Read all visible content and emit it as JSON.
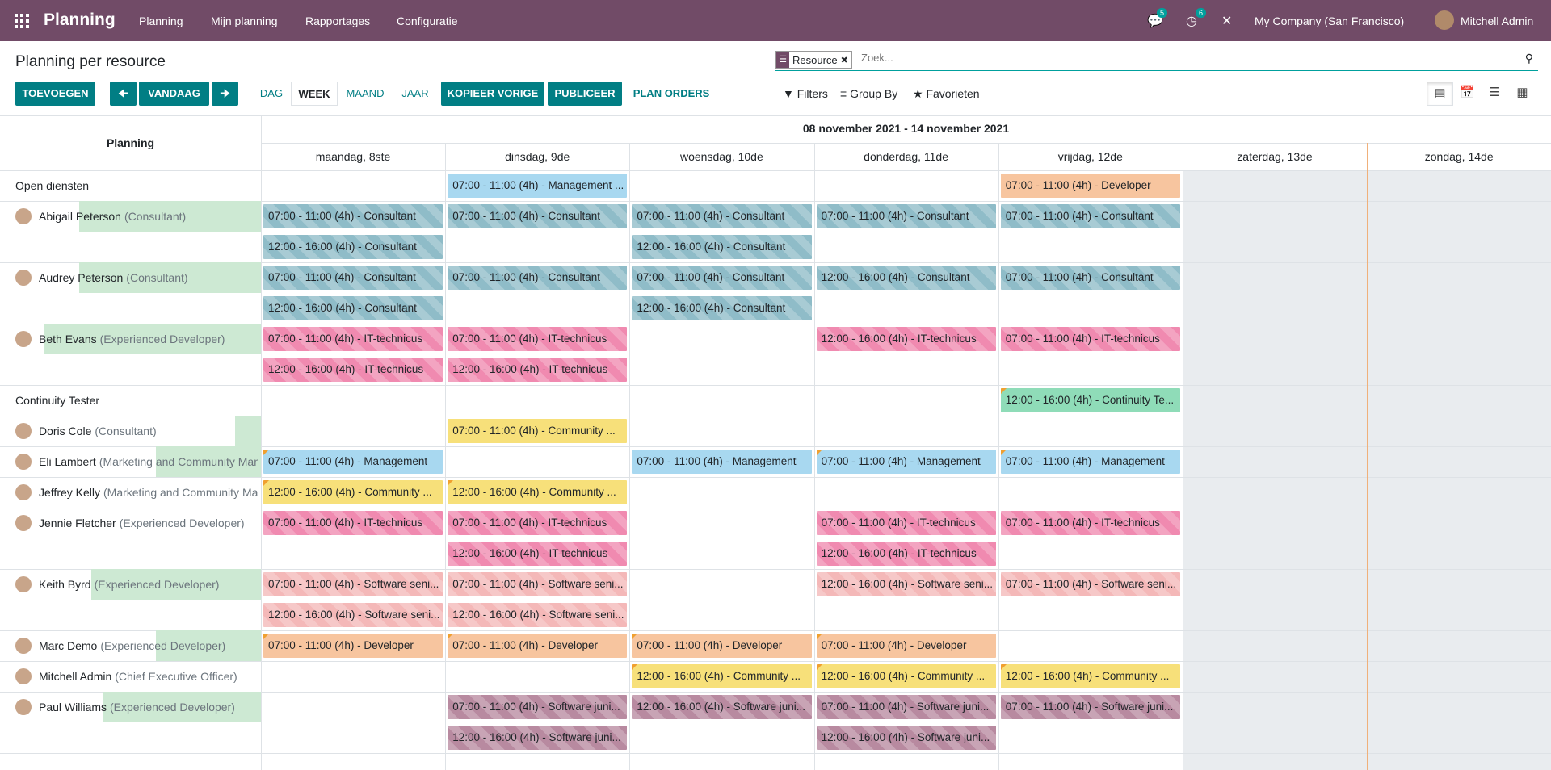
{
  "topbar": {
    "app_name": "Planning",
    "menu": [
      "Planning",
      "Mijn planning",
      "Rapportages",
      "Configuratie"
    ],
    "messages_count": "5",
    "activities_count": "6",
    "company": "My Company (San Francisco)",
    "user": "Mitchell Admin"
  },
  "page_title": "Planning per resource",
  "search": {
    "facet_label": "Resource",
    "placeholder": "Zoek..."
  },
  "toolbar": {
    "add": "TOEVOEGEN",
    "prev_icon": "arrow-left-icon",
    "today": "VANDAAG",
    "next_icon": "arrow-right-icon",
    "scales": [
      "DAG",
      "WEEK",
      "MAAND",
      "JAAR"
    ],
    "active_scale": "WEEK",
    "copy_previous": "KOPIEER VORIGE",
    "publish": "PUBLICEER",
    "plan_orders": "PLAN ORDERS",
    "filters": "Filters",
    "group_by": "Group By",
    "favorites": "Favorieten"
  },
  "gantt": {
    "header_title": "Planning",
    "range": "08 november 2021 - 14 november 2021",
    "days": [
      "maandag, 8ste",
      "dinsdag, 9de",
      "woensdag, 10de",
      "donderdag, 11de",
      "vrijdag, 12de",
      "zaterdag, 13de",
      "zondag, 14de"
    ],
    "rows": [
      {
        "name": "Open diensten",
        "role": "",
        "avatar": false,
        "lines": 1,
        "hl": 0,
        "pills": [
          {
            "day": 1,
            "line": 0,
            "text": "07:00 - 11:00 (4h) - Management ...",
            "color": "#a8d8f0",
            "striped": false,
            "corner": false
          },
          {
            "day": 4,
            "line": 0,
            "text": "07:00 - 11:00 (4h) - Developer",
            "color": "#f7c59f",
            "striped": false,
            "corner": false
          }
        ]
      },
      {
        "name": "Abigail Peterson",
        "role": "(Consultant)",
        "avatar": true,
        "lines": 2,
        "hl": 225,
        "pills": [
          {
            "day": 0,
            "line": 0,
            "text": "07:00 - 11:00 (4h) - Consultant",
            "color": "#8fbcc8",
            "striped": true,
            "corner": false
          },
          {
            "day": 1,
            "line": 0,
            "text": "07:00 - 11:00 (4h) - Consultant",
            "color": "#8fbcc8",
            "striped": true,
            "corner": false
          },
          {
            "day": 2,
            "line": 0,
            "text": "07:00 - 11:00 (4h) - Consultant",
            "color": "#8fbcc8",
            "striped": true,
            "corner": false
          },
          {
            "day": 3,
            "line": 0,
            "text": "07:00 - 11:00 (4h) - Consultant",
            "color": "#8fbcc8",
            "striped": true,
            "corner": false
          },
          {
            "day": 4,
            "line": 0,
            "text": "07:00 - 11:00 (4h) - Consultant",
            "color": "#8fbcc8",
            "striped": true,
            "corner": false
          },
          {
            "day": 0,
            "line": 1,
            "text": "12:00 - 16:00 (4h) - Consultant",
            "color": "#8fbcc8",
            "striped": true,
            "corner": false
          },
          {
            "day": 2,
            "line": 1,
            "text": "12:00 - 16:00 (4h) - Consultant",
            "color": "#8fbcc8",
            "striped": true,
            "corner": false
          }
        ]
      },
      {
        "name": "Audrey Peterson",
        "role": "(Consultant)",
        "avatar": true,
        "lines": 2,
        "hl": 225,
        "pills": [
          {
            "day": 0,
            "line": 0,
            "text": "07:00 - 11:00 (4h) - Consultant",
            "color": "#8fbcc8",
            "striped": true,
            "corner": false
          },
          {
            "day": 1,
            "line": 0,
            "text": "07:00 - 11:00 (4h) - Consultant",
            "color": "#8fbcc8",
            "striped": true,
            "corner": false
          },
          {
            "day": 2,
            "line": 0,
            "text": "07:00 - 11:00 (4h) - Consultant",
            "color": "#8fbcc8",
            "striped": true,
            "corner": false
          },
          {
            "day": 3,
            "line": 0,
            "text": "12:00 - 16:00 (4h) - Consultant",
            "color": "#8fbcc8",
            "striped": true,
            "corner": false
          },
          {
            "day": 4,
            "line": 0,
            "text": "07:00 - 11:00 (4h) - Consultant",
            "color": "#8fbcc8",
            "striped": true,
            "corner": false
          },
          {
            "day": 0,
            "line": 1,
            "text": "12:00 - 16:00 (4h) - Consultant",
            "color": "#8fbcc8",
            "striped": true,
            "corner": false
          },
          {
            "day": 2,
            "line": 1,
            "text": "12:00 - 16:00 (4h) - Consultant",
            "color": "#8fbcc8",
            "striped": true,
            "corner": false
          }
        ]
      },
      {
        "name": "Beth Evans",
        "role": "(Experienced Developer)",
        "avatar": true,
        "lines": 2,
        "hl": 268,
        "pills": [
          {
            "day": 0,
            "line": 0,
            "text": "07:00 - 11:00 (4h) - IT-technicus",
            "color": "#f08ab0",
            "striped": true,
            "corner": false
          },
          {
            "day": 1,
            "line": 0,
            "text": "07:00 - 11:00 (4h) - IT-technicus",
            "color": "#f08ab0",
            "striped": true,
            "corner": false
          },
          {
            "day": 3,
            "line": 0,
            "text": "12:00 - 16:00 (4h) - IT-technicus",
            "color": "#f08ab0",
            "striped": true,
            "corner": false
          },
          {
            "day": 4,
            "line": 0,
            "text": "07:00 - 11:00 (4h) - IT-technicus",
            "color": "#f08ab0",
            "striped": true,
            "corner": false
          },
          {
            "day": 0,
            "line": 1,
            "text": "12:00 - 16:00 (4h) - IT-technicus",
            "color": "#f08ab0",
            "striped": true,
            "corner": false
          },
          {
            "day": 1,
            "line": 1,
            "text": "12:00 - 16:00 (4h) - IT-technicus",
            "color": "#f08ab0",
            "striped": true,
            "corner": false
          }
        ]
      },
      {
        "name": "Continuity Tester",
        "role": "",
        "avatar": false,
        "lines": 1,
        "hl": 0,
        "pills": [
          {
            "day": 4,
            "line": 0,
            "text": "12:00 - 16:00 (4h) - Continuity Te...",
            "color": "#8fdcb8",
            "striped": false,
            "corner": true
          }
        ]
      },
      {
        "name": "Doris Cole",
        "role": "(Consultant)",
        "avatar": true,
        "lines": 1,
        "hl": 32,
        "pills": [
          {
            "day": 1,
            "line": 0,
            "text": "07:00 - 11:00 (4h) - Community ...",
            "color": "#f7e07a",
            "striped": false,
            "corner": false
          }
        ]
      },
      {
        "name": "Eli Lambert",
        "role": "(Marketing and Community Manager)",
        "avatar": true,
        "lines": 1,
        "hl": 130,
        "pills": [
          {
            "day": 0,
            "line": 0,
            "text": "07:00 - 11:00 (4h) - Management",
            "color": "#a8d8f0",
            "striped": false,
            "corner": true
          },
          {
            "day": 2,
            "line": 0,
            "text": "07:00 - 11:00 (4h) - Management",
            "color": "#a8d8f0",
            "striped": false,
            "corner": false
          },
          {
            "day": 3,
            "line": 0,
            "text": "07:00 - 11:00 (4h) - Management",
            "color": "#a8d8f0",
            "striped": false,
            "corner": true
          },
          {
            "day": 4,
            "line": 0,
            "text": "07:00 - 11:00 (4h) - Management",
            "color": "#a8d8f0",
            "striped": false,
            "corner": true
          }
        ]
      },
      {
        "name": "Jeffrey Kelly",
        "role": "(Marketing and Community Manager)",
        "avatar": true,
        "lines": 1,
        "hl": 0,
        "pills": [
          {
            "day": 0,
            "line": 0,
            "text": "12:00 - 16:00 (4h) - Community ...",
            "color": "#f7e07a",
            "striped": false,
            "corner": true
          },
          {
            "day": 1,
            "line": 0,
            "text": "12:00 - 16:00 (4h) - Community ...",
            "color": "#f7e07a",
            "striped": false,
            "corner": true
          }
        ]
      },
      {
        "name": "Jennie Fletcher",
        "role": "(Experienced Developer)",
        "avatar": true,
        "lines": 2,
        "hl": 0,
        "pills": [
          {
            "day": 0,
            "line": 0,
            "text": "07:00 - 11:00 (4h) - IT-technicus",
            "color": "#f08ab0",
            "striped": true,
            "corner": false
          },
          {
            "day": 1,
            "line": 0,
            "text": "07:00 - 11:00 (4h) - IT-technicus",
            "color": "#f08ab0",
            "striped": true,
            "corner": false
          },
          {
            "day": 3,
            "line": 0,
            "text": "07:00 - 11:00 (4h) - IT-technicus",
            "color": "#f08ab0",
            "striped": true,
            "corner": false
          },
          {
            "day": 4,
            "line": 0,
            "text": "07:00 - 11:00 (4h) - IT-technicus",
            "color": "#f08ab0",
            "striped": true,
            "corner": false
          },
          {
            "day": 1,
            "line": 1,
            "text": "12:00 - 16:00 (4h) - IT-technicus",
            "color": "#f08ab0",
            "striped": true,
            "corner": false
          },
          {
            "day": 3,
            "line": 1,
            "text": "12:00 - 16:00 (4h) - IT-technicus",
            "color": "#f08ab0",
            "striped": true,
            "corner": false
          }
        ]
      },
      {
        "name": "Keith Byrd",
        "role": "(Experienced Developer)",
        "avatar": true,
        "lines": 2,
        "hl": 210,
        "pills": [
          {
            "day": 0,
            "line": 0,
            "text": "07:00 - 11:00 (4h) - Software seni...",
            "color": "#f4b8b8",
            "striped": true,
            "corner": false
          },
          {
            "day": 1,
            "line": 0,
            "text": "07:00 - 11:00 (4h) - Software seni...",
            "color": "#f4b8b8",
            "striped": true,
            "corner": false
          },
          {
            "day": 3,
            "line": 0,
            "text": "12:00 - 16:00 (4h) - Software seni...",
            "color": "#f4b8b8",
            "striped": true,
            "corner": false
          },
          {
            "day": 4,
            "line": 0,
            "text": "07:00 - 11:00 (4h) - Software seni...",
            "color": "#f4b8b8",
            "striped": true,
            "corner": false
          },
          {
            "day": 0,
            "line": 1,
            "text": "12:00 - 16:00 (4h) - Software seni...",
            "color": "#f4b8b8",
            "striped": true,
            "corner": false
          },
          {
            "day": 1,
            "line": 1,
            "text": "12:00 - 16:00 (4h) - Software seni...",
            "color": "#f4b8b8",
            "striped": true,
            "corner": false
          }
        ]
      },
      {
        "name": "Marc Demo",
        "role": "(Experienced Developer)",
        "avatar": true,
        "lines": 1,
        "hl": 130,
        "pills": [
          {
            "day": 0,
            "line": 0,
            "text": "07:00 - 11:00 (4h) - Developer",
            "color": "#f7c59f",
            "striped": false,
            "corner": true
          },
          {
            "day": 1,
            "line": 0,
            "text": "07:00 - 11:00 (4h) - Developer",
            "color": "#f7c59f",
            "striped": false,
            "corner": true
          },
          {
            "day": 2,
            "line": 0,
            "text": "07:00 - 11:00 (4h) - Developer",
            "color": "#f7c59f",
            "striped": false,
            "corner": true
          },
          {
            "day": 3,
            "line": 0,
            "text": "07:00 - 11:00 (4h) - Developer",
            "color": "#f7c59f",
            "striped": false,
            "corner": true
          }
        ]
      },
      {
        "name": "Mitchell Admin",
        "role": "(Chief Executive Officer)",
        "avatar": true,
        "lines": 1,
        "hl": 0,
        "pills": [
          {
            "day": 2,
            "line": 0,
            "text": "12:00 - 16:00 (4h) - Community ...",
            "color": "#f7e07a",
            "striped": false,
            "corner": true
          },
          {
            "day": 3,
            "line": 0,
            "text": "12:00 - 16:00 (4h) - Community ...",
            "color": "#f7e07a",
            "striped": false,
            "corner": true
          },
          {
            "day": 4,
            "line": 0,
            "text": "12:00 - 16:00 (4h) - Community ...",
            "color": "#f7e07a",
            "striped": false,
            "corner": true
          }
        ]
      },
      {
        "name": "Paul Williams",
        "role": "(Experienced Developer)",
        "avatar": true,
        "lines": 2,
        "hl": 195,
        "pills": [
          {
            "day": 1,
            "line": 0,
            "text": "07:00 - 11:00 (4h) - Software juni...",
            "color": "#b88aa0",
            "striped": true,
            "corner": false
          },
          {
            "day": 2,
            "line": 0,
            "text": "12:00 - 16:00 (4h) - Software juni...",
            "color": "#b88aa0",
            "striped": true,
            "corner": false
          },
          {
            "day": 3,
            "line": 0,
            "text": "07:00 - 11:00 (4h) - Software juni...",
            "color": "#b88aa0",
            "striped": true,
            "corner": false
          },
          {
            "day": 4,
            "line": 0,
            "text": "07:00 - 11:00 (4h) - Software juni...",
            "color": "#b88aa0",
            "striped": true,
            "corner": false
          },
          {
            "day": 1,
            "line": 1,
            "text": "12:00 - 16:00 (4h) - Software juni...",
            "color": "#b88aa0",
            "striped": true,
            "corner": false
          },
          {
            "day": 3,
            "line": 1,
            "text": "12:00 - 16:00 (4h) - Software juni...",
            "color": "#b88aa0",
            "striped": true,
            "corner": false
          }
        ]
      }
    ]
  },
  "colors": {
    "brand": "#714B67",
    "primary": "#017E84",
    "weekend": "#e9ecef",
    "row_highlight": "#cde9d3"
  }
}
